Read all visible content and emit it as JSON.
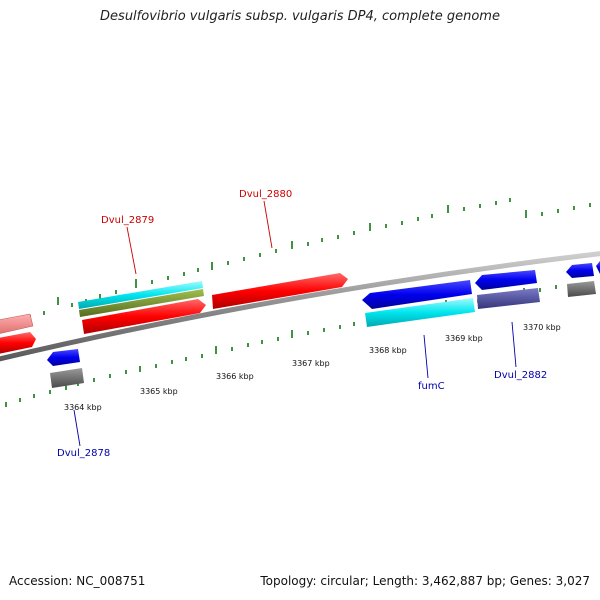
{
  "title": "Desulfovibrio vulgaris subsp. vulgaris DP4, complete genome",
  "footer": {
    "accession": "Accession: NC_008751",
    "summary": "Topology: circular; Length: 3,462,887 bp; Genes: 3,027"
  },
  "ticks": [
    "3364 kbp",
    "3365 kbp",
    "3366 kbp",
    "3367 kbp",
    "3368 kbp",
    "3369 kbp",
    "3370 kbp"
  ],
  "gene_labels": {
    "dvul_2878": "Dvul_2878",
    "dvul_2879": "Dvul_2879",
    "dvul_2880": "Dvul_2880",
    "fumc": "fumC",
    "dvul_2882": "Dvul_2882"
  },
  "colors": {
    "backbone": "#8c8c8c",
    "forward_gene": "#ff0000",
    "reverse_gene": "#0000ee",
    "cyan_feature": "#00e5ee",
    "olive_feature": "#6b8e23",
    "gray_feature": "#666666",
    "slate_feature": "#4b4b9a",
    "tick_green": "#117711",
    "label_red": "#cc0000",
    "label_blue": "#0000aa"
  }
}
